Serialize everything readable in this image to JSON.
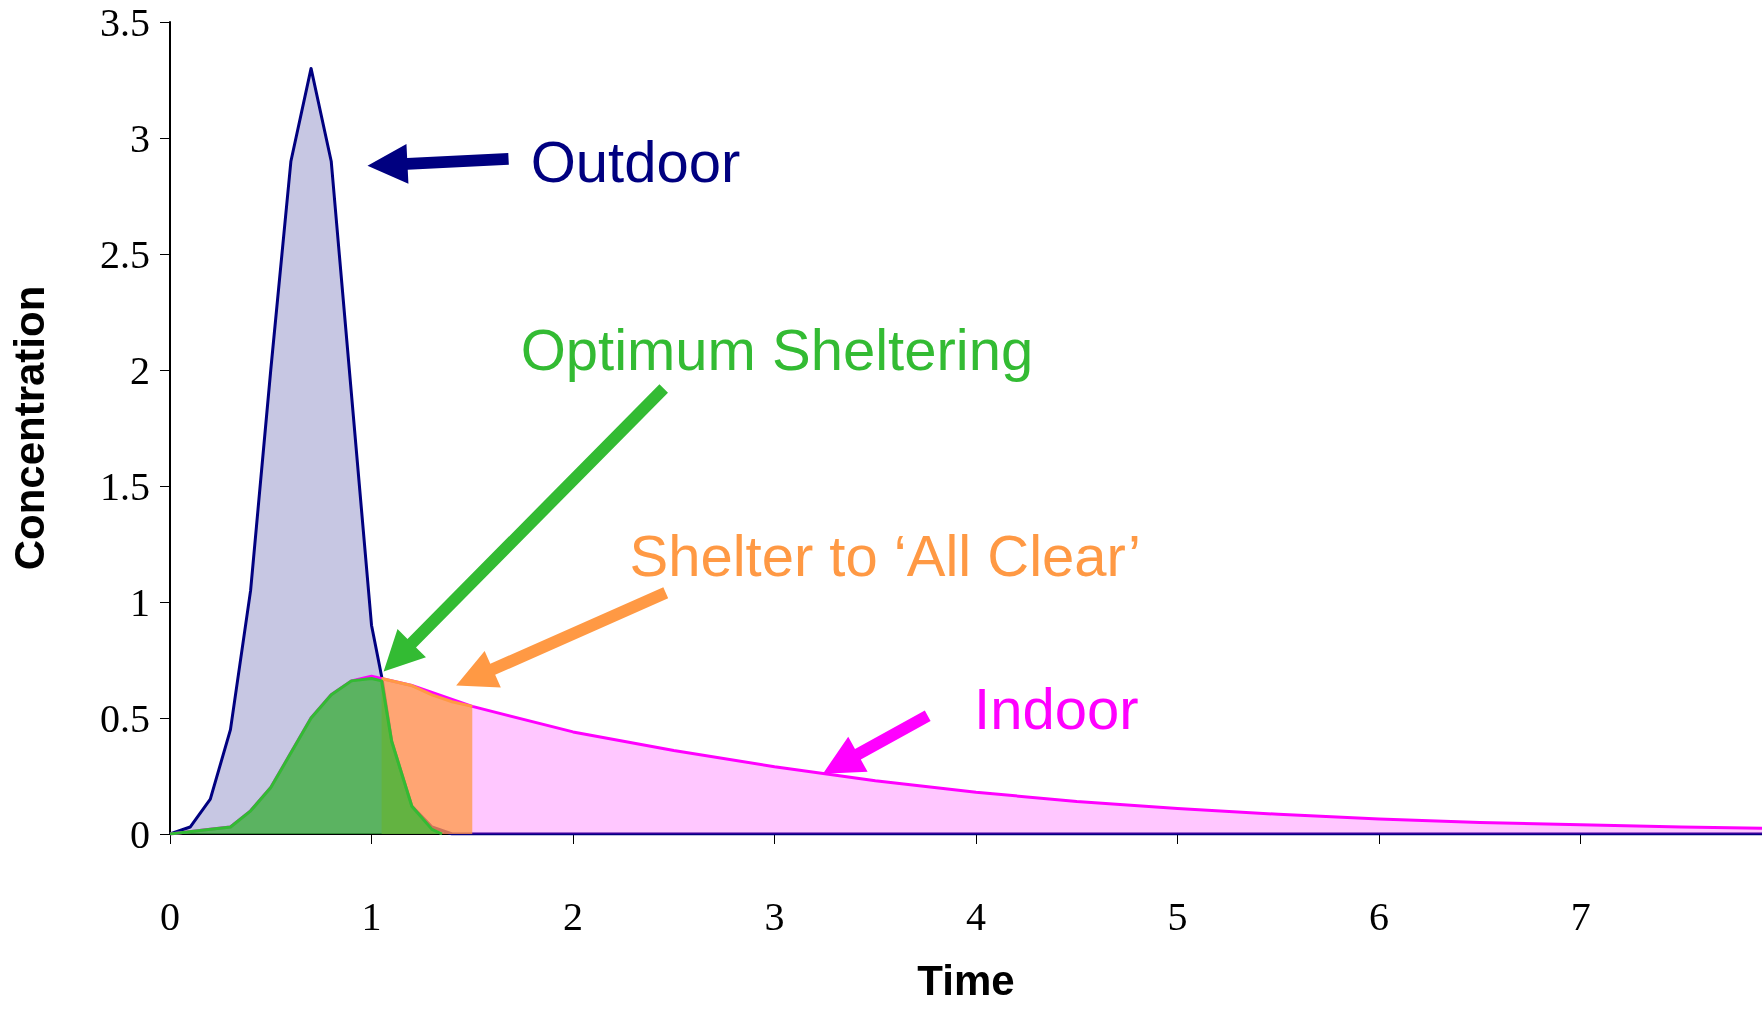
{
  "chart_data": {
    "type": "area",
    "xlabel": "Time",
    "ylabel": "Concentration",
    "xlim": [
      0,
      7.9
    ],
    "xticks": [
      0,
      1,
      2,
      3,
      4,
      5,
      6,
      7
    ],
    "ylim": [
      0,
      3.5
    ],
    "yticks": [
      0,
      0.5,
      1,
      1.5,
      2,
      2.5,
      3,
      3.5
    ],
    "grid": false,
    "legend": "bottom left",
    "series": [
      {
        "name": "Outdoor",
        "color": "#000080",
        "x": [
          0,
          0.1,
          0.2,
          0.3,
          0.4,
          0.5,
          0.6,
          0.7,
          0.8,
          0.9,
          1.0,
          1.05,
          1.1,
          1.2,
          1.3,
          1.4,
          7.9
        ],
        "values": [
          0,
          0.03,
          0.15,
          0.45,
          1.05,
          2.0,
          2.9,
          3.3,
          2.9,
          1.9,
          0.9,
          0.68,
          0.4,
          0.12,
          0.03,
          0,
          0
        ]
      },
      {
        "name": "Indoor",
        "color": "#ff00ff",
        "x": [
          0,
          0.2,
          0.3,
          0.4,
          0.5,
          0.6,
          0.7,
          0.8,
          0.9,
          1.0,
          1.2,
          1.5,
          2,
          2.5,
          3,
          3.5,
          4,
          4.5,
          5,
          5.5,
          6,
          6.5,
          7,
          7.5,
          7.9
        ],
        "values": [
          0,
          0.02,
          0.03,
          0.1,
          0.2,
          0.35,
          0.5,
          0.6,
          0.66,
          0.68,
          0.64,
          0.55,
          0.44,
          0.36,
          0.29,
          0.23,
          0.18,
          0.14,
          0.11,
          0.085,
          0.065,
          0.05,
          0.04,
          0.03,
          0.025
        ]
      },
      {
        "name": "Shelter to ‘All Clear’",
        "color": "#ff9944",
        "x": [
          1.05,
          1.2,
          1.3,
          1.4,
          1.5
        ],
        "values": [
          0.67,
          0.64,
          0.6,
          0.57,
          0.55
        ]
      },
      {
        "name": "Optimum Sheltering",
        "color": "#33bb33",
        "x": [
          0,
          0.2,
          0.3,
          0.4,
          0.5,
          0.6,
          0.7,
          0.8,
          0.9,
          1.0,
          1.05,
          1.1,
          1.2,
          1.3,
          1.35
        ],
        "values": [
          0,
          0.02,
          0.03,
          0.1,
          0.2,
          0.35,
          0.5,
          0.6,
          0.66,
          0.67,
          0.66,
          0.4,
          0.12,
          0.02,
          0
        ]
      }
    ]
  }
}
